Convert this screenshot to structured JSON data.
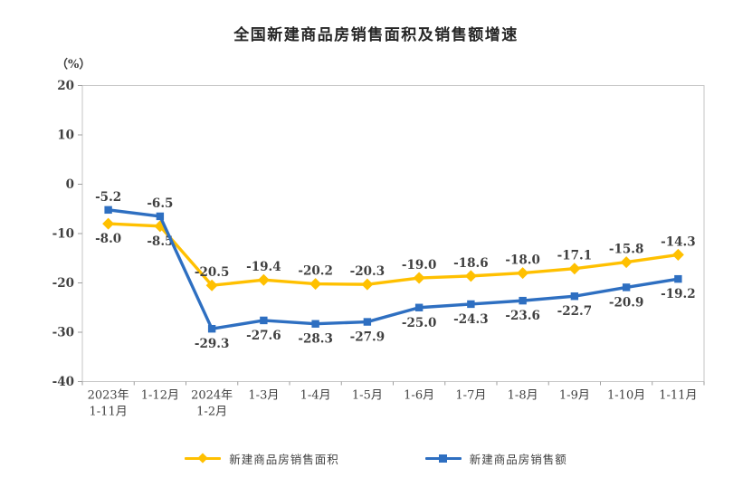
{
  "title": "全国新建商品房销售面积及销售额增速",
  "y_unit": "（%）",
  "chart_data": {
    "type": "line",
    "title": "全国新建商品房销售面积及销售额增速",
    "ylabel": "（%）",
    "ylim": [
      -40,
      20
    ],
    "yticks": [
      20,
      10,
      0,
      -10,
      -20,
      -30,
      -40
    ],
    "grid": false,
    "legend_position": "bottom",
    "categories": [
      "2023年\n1-11月",
      "1-12月",
      "2024年\n1-2月",
      "1-3月",
      "1-4月",
      "1-5月",
      "1-6月",
      "1-7月",
      "1-8月",
      "1-9月",
      "1-10月",
      "1-11月"
    ],
    "series": [
      {
        "name": "新建商品房销售面积",
        "color": "#FFC000",
        "marker": "diamond",
        "values": [
          -8.0,
          -8.5,
          -20.5,
          -19.4,
          -20.2,
          -20.3,
          -19.0,
          -18.6,
          -18.0,
          -17.1,
          -15.8,
          -14.3
        ],
        "label_position": [
          "below",
          "below",
          "above",
          "above",
          "above",
          "above",
          "above",
          "above",
          "above",
          "above",
          "above",
          "above"
        ]
      },
      {
        "name": "新建商品房销售额",
        "color": "#2E6FC1",
        "marker": "square",
        "values": [
          -5.2,
          -6.5,
          -29.3,
          -27.6,
          -28.3,
          -27.9,
          -25.0,
          -24.3,
          -23.6,
          -22.7,
          -20.9,
          -19.2
        ],
        "label_position": [
          "above",
          "above",
          "below",
          "below",
          "below",
          "below",
          "below",
          "below",
          "below",
          "below",
          "below",
          "below"
        ]
      }
    ],
    "axis_color": "#c6c6c6",
    "tick_color": "#9e9e9e",
    "label_color": "#404040"
  }
}
